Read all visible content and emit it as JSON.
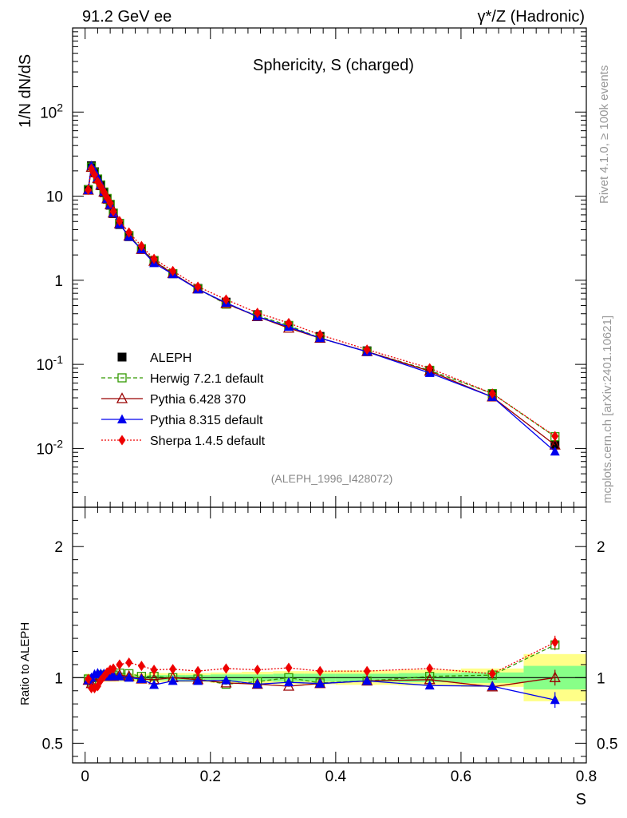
{
  "header": {
    "left": "91.2 GeV ee",
    "right": "γ*/Z (Hadronic)"
  },
  "side_labels": {
    "rivet": "Rivet 4.1.0, ≥ 100k events",
    "mcplots": "mcplots.cern.ch [arXiv:2401.10621]"
  },
  "colors": {
    "data": "#000000",
    "herwig": "#339900",
    "pythia6": "#990000",
    "pythia8": "#0000ee",
    "sherpa": "#ee0000",
    "band_inner": "#88ff88",
    "band_outer": "#ffff88"
  },
  "chart_data": [
    {
      "type": "scatter",
      "panel": "main",
      "title": "Sphericity, S (charged)",
      "ylabel": "1/N  dN/dS",
      "yscale": "log",
      "ylim": [
        0.002,
        1000
      ],
      "xlim": [
        -0.02,
        0.8
      ],
      "ytick_labels": [
        "10^-2",
        "10^-1",
        "1",
        "10",
        "10^2"
      ],
      "watermark": "(ALEPH_1996_I428072)",
      "x": [
        0.005,
        0.01,
        0.015,
        0.02,
        0.025,
        0.03,
        0.035,
        0.04,
        0.045,
        0.055,
        0.07,
        0.09,
        0.11,
        0.14,
        0.18,
        0.225,
        0.275,
        0.325,
        0.375,
        0.45,
        0.55,
        0.65,
        0.75
      ],
      "series": [
        {
          "name": "ALEPH",
          "key": "data",
          "marker": "square",
          "line": "none",
          "values": [
            12,
            23,
            19.5,
            16,
            13.3,
            11,
            9.2,
            7.8,
            6.2,
            4.6,
            3.3,
            2.35,
            1.7,
            1.2,
            0.8,
            0.55,
            0.39,
            0.29,
            0.215,
            0.145,
            0.084,
            0.044,
            0.011
          ]
        },
        {
          "name": "Herwig 7.2.1 default",
          "key": "herwig",
          "marker": "open-square",
          "line": "dashed",
          "values": [
            11.9,
            22.2,
            19.0,
            16.0,
            13.6,
            11.2,
            9.4,
            8.0,
            6.3,
            4.75,
            3.4,
            2.37,
            1.72,
            1.2,
            0.79,
            0.52,
            0.38,
            0.29,
            0.205,
            0.142,
            0.085,
            0.045,
            0.0138
          ]
        },
        {
          "name": "Pythia 6.428 370",
          "key": "pythia6",
          "marker": "open-triangle",
          "line": "solid",
          "values": [
            11.8,
            22.0,
            19.0,
            16.2,
            13.5,
            11.2,
            9.3,
            7.9,
            6.3,
            4.7,
            3.35,
            2.33,
            1.68,
            1.2,
            0.79,
            0.53,
            0.37,
            0.27,
            0.205,
            0.142,
            0.083,
            0.041,
            0.011
          ]
        },
        {
          "name": "Pythia 8.315 default",
          "key": "pythia8",
          "marker": "triangle",
          "line": "solid",
          "values": [
            11.8,
            23.0,
            20.0,
            16.6,
            13.7,
            11.3,
            9.3,
            7.9,
            6.3,
            4.65,
            3.3,
            2.33,
            1.6,
            1.18,
            0.78,
            0.54,
            0.37,
            0.28,
            0.205,
            0.141,
            0.079,
            0.041,
            0.0092
          ]
        },
        {
          "name": "Sherpa 1.4.5 default",
          "key": "sherpa",
          "marker": "diamond",
          "line": "dotted",
          "values": [
            11.9,
            21.2,
            18.0,
            14.9,
            13.0,
            11.2,
            9.6,
            8.3,
            6.6,
            5.05,
            3.7,
            2.55,
            1.8,
            1.29,
            0.84,
            0.59,
            0.41,
            0.31,
            0.225,
            0.15,
            0.09,
            0.045,
            0.014
          ]
        }
      ]
    },
    {
      "type": "scatter",
      "panel": "ratio",
      "ylabel": "Ratio to ALEPH",
      "xlabel": "S",
      "ylim": [
        0.35,
        2.3
      ],
      "xlim": [
        -0.02,
        0.8
      ],
      "yticks": [
        0.5,
        1,
        2
      ],
      "ytick_labels": [
        "0.5",
        "1",
        "2"
      ],
      "xticks": [
        0,
        0.2,
        0.4,
        0.6,
        0.8
      ],
      "xtick_labels": [
        "0",
        "0.2",
        "0.4",
        "0.6",
        "0.8"
      ],
      "x": [
        0.005,
        0.01,
        0.015,
        0.02,
        0.025,
        0.03,
        0.035,
        0.04,
        0.045,
        0.055,
        0.07,
        0.09,
        0.11,
        0.14,
        0.18,
        0.225,
        0.275,
        0.325,
        0.375,
        0.45,
        0.55,
        0.65,
        0.75
      ],
      "band_edges": [
        0,
        0.0075,
        0.0125,
        0.0175,
        0.0225,
        0.0275,
        0.0325,
        0.0375,
        0.0425,
        0.05,
        0.06,
        0.08,
        0.1,
        0.12,
        0.16,
        0.2,
        0.25,
        0.3,
        0.35,
        0.4,
        0.5,
        0.6,
        0.7,
        0.8
      ],
      "band_inner": [
        0.02,
        0.015,
        0.015,
        0.015,
        0.015,
        0.015,
        0.015,
        0.015,
        0.015,
        0.015,
        0.015,
        0.015,
        0.02,
        0.02,
        0.02,
        0.025,
        0.025,
        0.03,
        0.03,
        0.03,
        0.035,
        0.04,
        0.09
      ],
      "band_outer": [
        0.03,
        0.025,
        0.025,
        0.025,
        0.025,
        0.03,
        0.03,
        0.03,
        0.03,
        0.03,
        0.03,
        0.03,
        0.035,
        0.035,
        0.035,
        0.04,
        0.045,
        0.05,
        0.05,
        0.055,
        0.06,
        0.07,
        0.18
      ],
      "series": [
        {
          "name": "Herwig 7.2.1 default",
          "key": "herwig",
          "marker": "open-square",
          "line": "dashed",
          "values": [
            0.99,
            0.965,
            0.975,
            1.0,
            1.02,
            1.02,
            1.02,
            1.03,
            1.02,
            1.035,
            1.03,
            1.01,
            1.01,
            1.0,
            0.99,
            0.95,
            0.97,
            1.0,
            0.96,
            0.975,
            1.01,
            1.02,
            1.25
          ],
          "error": [
            0,
            0,
            0,
            0,
            0,
            0,
            0,
            0,
            0,
            0,
            0,
            0,
            0,
            0,
            0,
            0,
            0,
            0,
            0,
            0,
            0,
            0,
            0.04
          ]
        },
        {
          "name": "Pythia 6.428 370",
          "key": "pythia6",
          "marker": "open-triangle",
          "line": "solid",
          "values": [
            0.98,
            0.955,
            0.975,
            1.01,
            1.015,
            1.02,
            1.01,
            1.01,
            1.01,
            1.02,
            1.01,
            0.99,
            0.985,
            1.0,
            0.985,
            0.96,
            0.95,
            0.935,
            0.955,
            0.975,
            0.985,
            0.93,
            1.0
          ],
          "error": [
            0,
            0,
            0,
            0,
            0,
            0,
            0,
            0,
            0,
            0,
            0,
            0,
            0,
            0,
            0,
            0,
            0,
            0,
            0,
            0,
            0,
            0.02,
            0.06
          ]
        },
        {
          "name": "Pythia 8.315 default",
          "key": "pythia8",
          "marker": "triangle",
          "line": "solid",
          "values": [
            0.98,
            1.0,
            1.025,
            1.035,
            1.03,
            1.03,
            1.01,
            1.01,
            1.015,
            1.01,
            1.0,
            0.99,
            0.945,
            0.975,
            0.975,
            0.98,
            0.95,
            0.965,
            0.955,
            0.975,
            0.94,
            0.935,
            0.83
          ],
          "error": [
            0,
            0,
            0,
            0,
            0,
            0,
            0,
            0,
            0,
            0,
            0,
            0,
            0,
            0,
            0,
            0,
            0,
            0,
            0,
            0,
            0,
            0.015,
            0.06
          ]
        },
        {
          "name": "Sherpa 1.4.5 default",
          "key": "sherpa",
          "marker": "diamond",
          "line": "dotted",
          "values": [
            0.99,
            0.92,
            0.92,
            0.935,
            0.98,
            1.01,
            1.04,
            1.06,
            1.07,
            1.1,
            1.115,
            1.09,
            1.06,
            1.065,
            1.05,
            1.07,
            1.06,
            1.075,
            1.05,
            1.05,
            1.07,
            1.03,
            1.27
          ],
          "error": [
            0,
            0,
            0,
            0,
            0,
            0,
            0,
            0,
            0,
            0,
            0,
            0,
            0,
            0,
            0,
            0,
            0,
            0,
            0,
            0,
            0.03,
            0.02,
            0.05
          ]
        }
      ]
    }
  ]
}
